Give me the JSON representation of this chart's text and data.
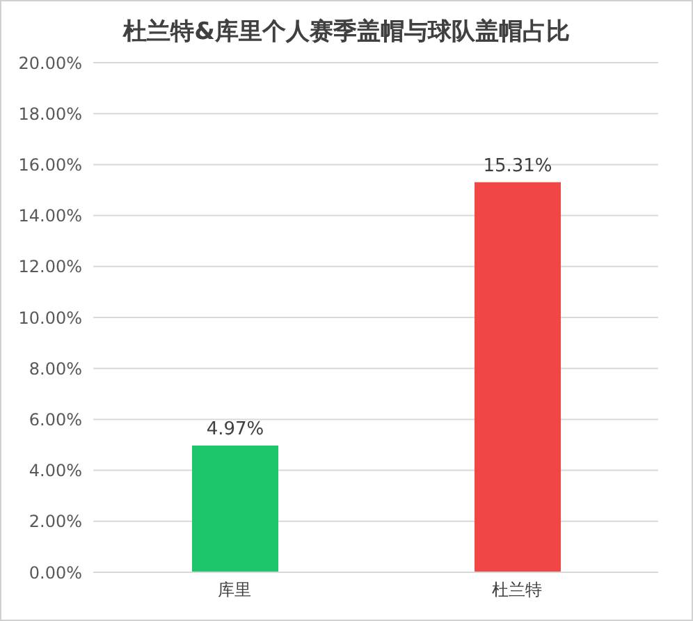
{
  "chart_data": {
    "type": "bar",
    "title": "杜兰特&库里个人赛季盖帽与球队盖帽占比",
    "categories": [
      "库里",
      "杜兰特"
    ],
    "values": [
      4.97,
      15.31
    ],
    "colors": [
      "#1dc66a",
      "#f04646"
    ],
    "value_labels": [
      "4.97%",
      "15.31%"
    ],
    "ylim": [
      0,
      20
    ],
    "yticks": [
      {
        "value": 0,
        "label": "0.00%"
      },
      {
        "value": 2,
        "label": "2.00%"
      },
      {
        "value": 4,
        "label": "4.00%"
      },
      {
        "value": 6,
        "label": "6.00%"
      },
      {
        "value": 8,
        "label": "8.00%"
      },
      {
        "value": 10,
        "label": "10.00%"
      },
      {
        "value": 12,
        "label": "12.00%"
      },
      {
        "value": 14,
        "label": "14.00%"
      },
      {
        "value": 16,
        "label": "16.00%"
      },
      {
        "value": 18,
        "label": "18.00%"
      },
      {
        "value": 20,
        "label": "20.00%"
      }
    ],
    "grid": "y",
    "legend": false
  }
}
